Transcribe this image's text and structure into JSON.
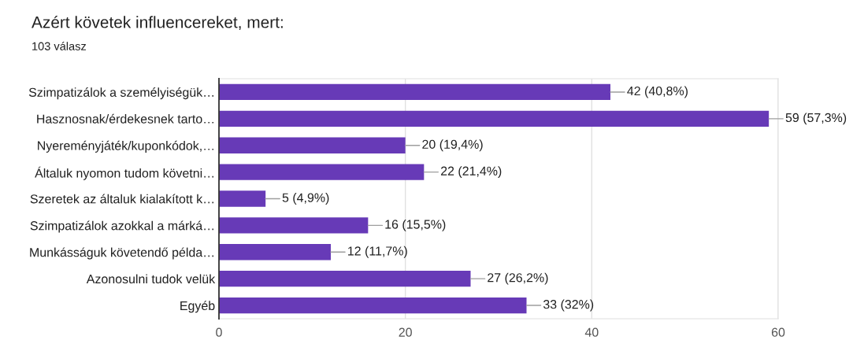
{
  "chart_data": {
    "type": "bar",
    "orientation": "horizontal",
    "title": "Azért követek influencereket, mert:",
    "subtitle": "103 válasz",
    "categories": [
      "Szimpatizálok a személyiségük…",
      "Hasznosnak/érdekesnek tarto…",
      "Nyereményjáték/kuponkódok,…",
      "Általuk nyomon tudom követni…",
      "Szeretek az általuk kialakított k…",
      "Szimpatizálok azokkal a márká…",
      "Munkásságuk követendő példa…",
      "Azonosulni tudok velük",
      "Egyéb"
    ],
    "values": [
      42,
      59,
      20,
      22,
      5,
      16,
      12,
      27,
      33
    ],
    "value_labels": [
      "42 (40,8%)",
      "59 (57,3%)",
      "20 (19,4%)",
      "22 (21,4%)",
      "5 (4,9%)",
      "16 (15,5%)",
      "12 (11,7%)",
      "27 (26,2%)",
      "33 (32%)"
    ],
    "color": "#673ab7",
    "xlim": [
      0,
      60
    ],
    "xticks": [
      0,
      20,
      40,
      60
    ],
    "grid": "x"
  }
}
